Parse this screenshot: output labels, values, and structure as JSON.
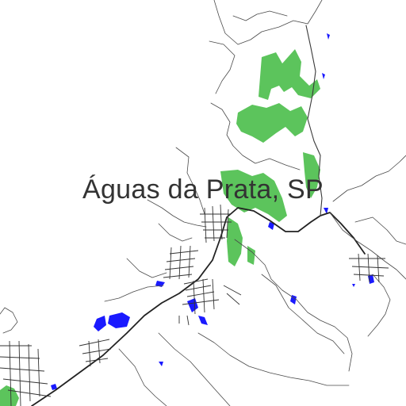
{
  "map": {
    "place_label": "Águas da Prata, SP",
    "colors": {
      "background": "#ffffff",
      "vegetation": "#5cc45c",
      "water": "#1a1aff",
      "road": "#333333",
      "label": "#333333"
    }
  }
}
